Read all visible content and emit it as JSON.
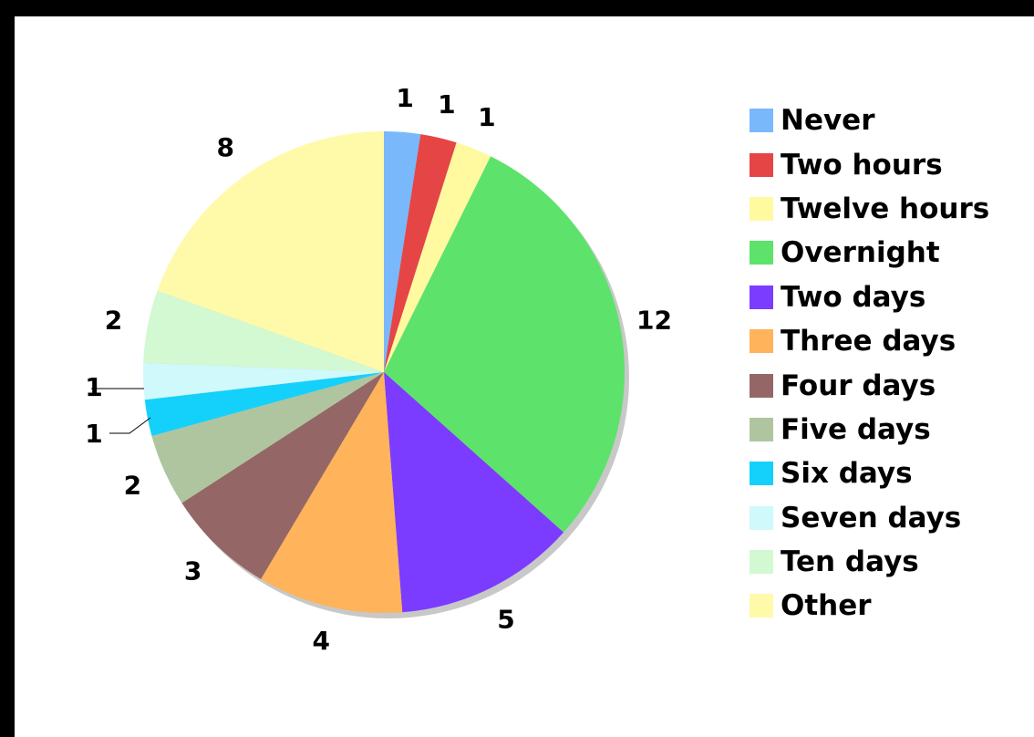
{
  "chart_data": {
    "type": "pie",
    "title": "",
    "categories": [
      "Never",
      "Two hours",
      "Twelve hours",
      "Overnight",
      "Two days",
      "Three days",
      "Four days",
      "Five days",
      "Six days",
      "Seven days",
      "Ten days",
      "Other"
    ],
    "values": [
      1,
      1,
      1,
      12,
      5,
      4,
      3,
      2,
      1,
      1,
      2,
      8
    ],
    "colors": [
      "#7ab8fc",
      "#e64545",
      "#fff9a0",
      "#5de36b",
      "#7b3cff",
      "#ffb35a",
      "#956666",
      "#afc59f",
      "#14d1fb",
      "#cff9fb",
      "#d2f9d2",
      "#fffaaa"
    ],
    "legend": {
      "position": "right",
      "entries": [
        "Never",
        "Two hours",
        "Twelve hours",
        "Overnight",
        "Two days",
        "Three days",
        "Four days",
        "Five days",
        "Six days",
        "Seven days",
        "Ten days",
        "Other"
      ]
    },
    "start_angle": "top",
    "direction": "clockwise",
    "data_labels": "values",
    "shadow": true
  }
}
